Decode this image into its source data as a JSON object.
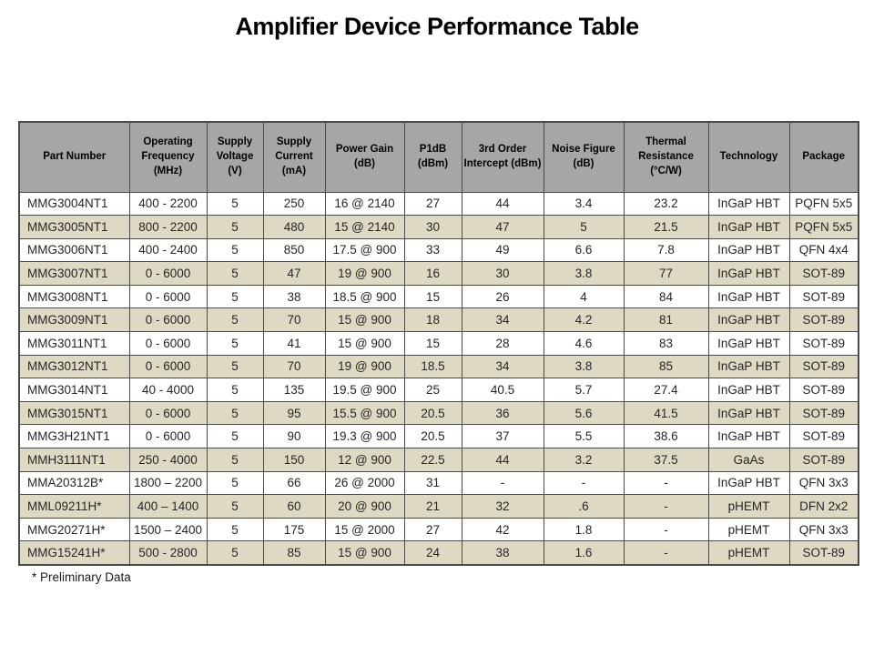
{
  "title": "Amplifier Device Performance Table",
  "footnote": "* Preliminary Data",
  "colors": {
    "header_bg": "#a6a6a6",
    "row_alt_bg": "#ddd9c3",
    "row_bg": "#ffffff",
    "border": "#4a4a4a"
  },
  "chart_data": {
    "type": "table",
    "title": "Amplifier Device Performance Table",
    "columns": [
      "Part Number",
      "Operating Frequency (MHz)",
      "Supply Voltage (V)",
      "Supply Current (mA)",
      "Power Gain (dB)",
      "P1dB (dBm)",
      "3rd Order Intercept (dBm)",
      "Noise Figure (dB)",
      "Thermal Resistance (°C/W)",
      "Technology",
      "Package"
    ],
    "rows": [
      [
        "MMG3004NT1",
        "400 - 2200",
        "5",
        "250",
        "16 @ 2140",
        "27",
        "44",
        "3.4",
        "23.2",
        "InGaP HBT",
        "PQFN 5x5"
      ],
      [
        "MMG3005NT1",
        "800 - 2200",
        "5",
        "480",
        "15 @ 2140",
        "30",
        "47",
        "5",
        "21.5",
        "InGaP HBT",
        "PQFN 5x5"
      ],
      [
        "MMG3006NT1",
        "400 - 2400",
        "5",
        "850",
        "17.5 @ 900",
        "33",
        "49",
        "6.6",
        "7.8",
        "InGaP HBT",
        "QFN 4x4"
      ],
      [
        "MMG3007NT1",
        "0 - 6000",
        "5",
        "47",
        "19 @ 900",
        "16",
        "30",
        "3.8",
        "77",
        "InGaP HBT",
        "SOT-89"
      ],
      [
        "MMG3008NT1",
        "0 - 6000",
        "5",
        "38",
        "18.5 @ 900",
        "15",
        "26",
        "4",
        "84",
        "InGaP HBT",
        "SOT-89"
      ],
      [
        "MMG3009NT1",
        "0 - 6000",
        "5",
        "70",
        "15 @ 900",
        "18",
        "34",
        "4.2",
        "81",
        "InGaP HBT",
        "SOT-89"
      ],
      [
        "MMG3011NT1",
        "0 - 6000",
        "5",
        "41",
        "15 @ 900",
        "15",
        "28",
        "4.6",
        "83",
        "InGaP HBT",
        "SOT-89"
      ],
      [
        "MMG3012NT1",
        "0 - 6000",
        "5",
        "70",
        "19 @ 900",
        "18.5",
        "34",
        "3.8",
        "85",
        "InGaP HBT",
        "SOT-89"
      ],
      [
        "MMG3014NT1",
        "40 - 4000",
        "5",
        "135",
        "19.5 @ 900",
        "25",
        "40.5",
        "5.7",
        "27.4",
        "InGaP HBT",
        "SOT-89"
      ],
      [
        "MMG3015NT1",
        "0 - 6000",
        "5",
        "95",
        "15.5 @ 900",
        "20.5",
        "36",
        "5.6",
        "41.5",
        "InGaP HBT",
        "SOT-89"
      ],
      [
        "MMG3H21NT1",
        "0 - 6000",
        "5",
        "90",
        "19.3 @ 900",
        "20.5",
        "37",
        "5.5",
        "38.6",
        "InGaP HBT",
        "SOT-89"
      ],
      [
        "MMH3111NT1",
        "250 - 4000",
        "5",
        "150",
        "12 @ 900",
        "22.5",
        "44",
        "3.2",
        "37.5",
        "GaAs",
        "SOT-89"
      ],
      [
        "MMA20312B*",
        "1800 – 2200",
        "5",
        "66",
        "26 @ 2000",
        "31",
        "-",
        "-",
        "-",
        "InGaP HBT",
        "QFN 3x3"
      ],
      [
        "MML09211H*",
        "400 – 1400",
        "5",
        "60",
        "20 @ 900",
        "21",
        "32",
        ".6",
        "-",
        "pHEMT",
        "DFN 2x2"
      ],
      [
        "MMG20271H*",
        "1500 – 2400",
        "5",
        "175",
        "15 @ 2000",
        "27",
        "42",
        "1.8",
        "-",
        "pHEMT",
        "QFN 3x3"
      ],
      [
        "MMG15241H*",
        "500 - 2800",
        "5",
        "85",
        "15 @ 900",
        "24",
        "38",
        "1.6",
        "-",
        "pHEMT",
        "SOT-89"
      ]
    ]
  }
}
